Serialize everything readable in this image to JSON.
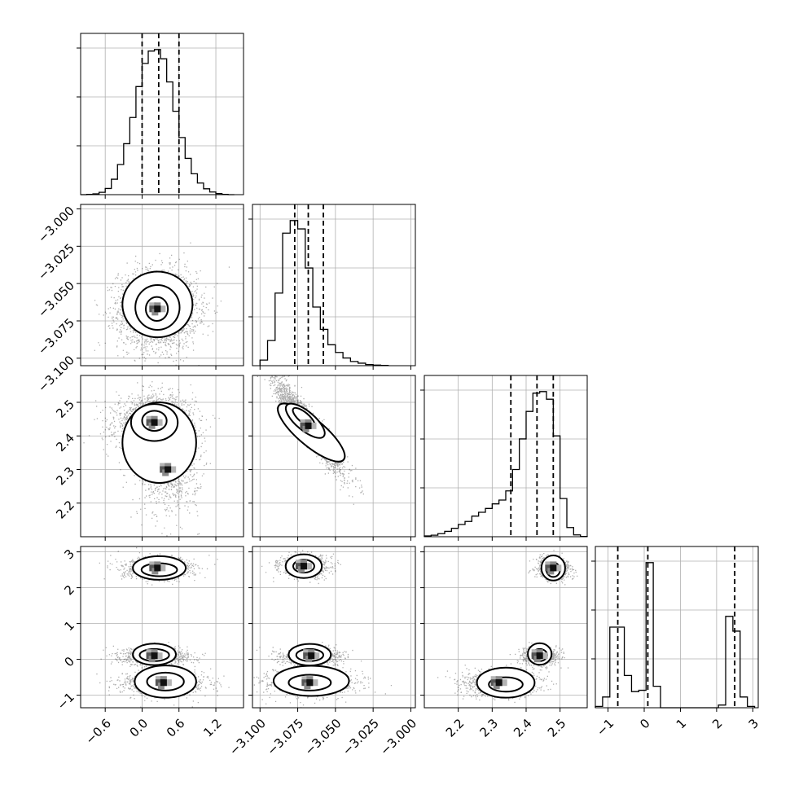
{
  "chart_data": {
    "type": "corner",
    "n_params": 4,
    "grid": true,
    "colors": {
      "line": "#000000",
      "grid": "#b0b0b0",
      "contour_fill": "#ffffff",
      "dens": [
        "#f2f2f2",
        "#d6d6d6",
        "#b4b4b4",
        "#8a8a8a",
        "#555555",
        "#111111"
      ]
    },
    "params": [
      {
        "range": [
          -1.0,
          1.65
        ],
        "ticks": [
          "−0.6",
          "0.0",
          "0.6",
          "1.2"
        ],
        "tick_values": [
          -0.6,
          0.0,
          0.6,
          1.2
        ],
        "quantiles": [
          0.0,
          0.27,
          0.6
        ],
        "hist": {
          "edges": [
            -1.0,
            -0.9,
            -0.8,
            -0.7,
            -0.6,
            -0.5,
            -0.4,
            -0.3,
            -0.2,
            -0.1,
            0.0,
            0.1,
            0.2,
            0.3,
            0.4,
            0.5,
            0.6,
            0.7,
            0.8,
            0.9,
            1.0,
            1.1,
            1.2,
            1.3,
            1.4,
            1.5
          ],
          "counts": [
            0,
            2,
            5,
            15,
            40,
            100,
            195,
            330,
            500,
            700,
            850,
            930,
            940,
            880,
            730,
            540,
            370,
            235,
            135,
            75,
            38,
            17,
            7,
            2,
            0
          ]
        }
      },
      {
        "range": [
          -3.105,
          -2.997
        ],
        "ticks": [
          "−3.100",
          "−3.075",
          "−3.050",
          "−3.025",
          "−3.000"
        ],
        "tick_values": [
          -3.1,
          -3.075,
          -3.05,
          -3.025,
          -3.0
        ],
        "quantiles": [
          -3.077,
          -3.068,
          -3.058
        ],
        "hist": {
          "edges": [
            -3.1,
            -3.095,
            -3.09,
            -3.085,
            -3.08,
            -3.075,
            -3.07,
            -3.065,
            -3.06,
            -3.055,
            -3.05,
            -3.045,
            -3.04,
            -3.035,
            -3.03,
            -3.025,
            -3.02,
            -3.015
          ],
          "counts": [
            40,
            180,
            520,
            950,
            1040,
            980,
            700,
            420,
            260,
            150,
            95,
            55,
            30,
            18,
            8,
            4,
            2
          ]
        }
      },
      {
        "range": [
          2.1,
          2.58
        ],
        "ticks": [
          "2.2",
          "2.3",
          "2.4",
          "2.5"
        ],
        "tick_values": [
          2.2,
          2.3,
          2.4,
          2.5
        ],
        "quantiles": [
          2.355,
          2.432,
          2.48
        ],
        "hist": {
          "edges": [
            2.1,
            2.12,
            2.14,
            2.16,
            2.18,
            2.2,
            2.22,
            2.24,
            2.26,
            2.28,
            2.3,
            2.32,
            2.34,
            2.36,
            2.38,
            2.4,
            2.42,
            2.44,
            2.46,
            2.48,
            2.5,
            2.52,
            2.54,
            2.56,
            2.58
          ],
          "counts": [
            5,
            10,
            20,
            35,
            55,
            80,
            100,
            135,
            160,
            185,
            215,
            240,
            300,
            440,
            640,
            820,
            940,
            950,
            900,
            660,
            250,
            60,
            12,
            2
          ]
        }
      },
      {
        "range": [
          -1.35,
          3.15
        ],
        "ticks": [
          "−1",
          "0",
          "1",
          "2",
          "3"
        ],
        "tick_values": [
          -1,
          0,
          1,
          2,
          3
        ],
        "quantiles": [
          -0.73,
          0.1,
          2.5
        ],
        "hist": {
          "edges": [
            -1.35,
            -1.15,
            -0.95,
            -0.75,
            -0.55,
            -0.35,
            -0.15,
            0.05,
            0.25,
            0.45,
            0.65,
            0.85,
            1.05,
            1.25,
            1.45,
            1.65,
            1.85,
            2.05,
            2.25,
            2.45,
            2.65,
            2.85,
            3.05
          ],
          "counts": [
            5,
            40,
            300,
            300,
            120,
            60,
            65,
            540,
            80,
            0,
            0,
            0,
            0,
            0,
            0,
            0,
            0,
            10,
            340,
            285,
            40,
            5
          ]
        }
      }
    ],
    "pairs": [
      {
        "row": 1,
        "col": 0,
        "modes": [
          {
            "w": 1.0,
            "mx": 0.25,
            "my": -3.067,
            "sx": 0.32,
            "sy": 0.013,
            "rho": 0.0
          }
        ],
        "contours": [
          {
            "w": 0.85,
            "cx": 0.25,
            "cy": -3.064,
            "rx": 0.57,
            "ry": 0.022,
            "rot": 0
          },
          {
            "w": 0.75,
            "cx": 0.25,
            "cy": -3.066,
            "rx": 0.36,
            "ry": 0.015,
            "rot": 0
          },
          {
            "w": 0.75,
            "cx": 0.24,
            "cy": -3.067,
            "rx": 0.18,
            "ry": 0.008,
            "rot": 0
          }
        ]
      },
      {
        "row": 2,
        "col": 0,
        "modes": [
          {
            "w": 0.7,
            "mx": 0.2,
            "my": 2.44,
            "sx": 0.32,
            "sy": 0.04,
            "rho": 0.0
          },
          {
            "w": 0.3,
            "mx": 0.42,
            "my": 2.3,
            "sx": 0.25,
            "sy": 0.07,
            "rho": 0.0
          }
        ],
        "contours": [
          {
            "w": 0.85,
            "cx": 0.28,
            "cy": 2.38,
            "rx": 0.6,
            "ry": 0.12,
            "rot": 0
          },
          {
            "w": 0.75,
            "cx": 0.2,
            "cy": 2.44,
            "rx": 0.38,
            "ry": 0.055,
            "rot": 0
          },
          {
            "w": 0.75,
            "cx": 0.2,
            "cy": 2.445,
            "rx": 0.2,
            "ry": 0.03,
            "rot": 0
          }
        ]
      },
      {
        "row": 2,
        "col": 1,
        "modes": [
          {
            "w": 1.0,
            "mx": -3.068,
            "my": 2.43,
            "sx": 0.011,
            "sy": 0.065,
            "rho": -0.93
          }
        ],
        "contours": [
          {
            "w": 0.85,
            "cx": -3.066,
            "cy": 2.41,
            "rx": 0.028,
            "ry": 0.04,
            "rot": 40
          },
          {
            "w": 0.75,
            "cx": -3.07,
            "cy": 2.445,
            "rx": 0.016,
            "ry": 0.028,
            "rot": 40
          },
          {
            "w": 0.75,
            "cx": -3.071,
            "cy": 2.455,
            "rx": 0.009,
            "ry": 0.015,
            "rot": 40
          }
        ]
      },
      {
        "row": 3,
        "col": 0,
        "modes": [
          {
            "w": 0.33,
            "mx": 0.25,
            "my": 2.55,
            "sx": 0.3,
            "sy": 0.15,
            "rho": 0.0
          },
          {
            "w": 0.33,
            "mx": 0.2,
            "my": 0.1,
            "sx": 0.28,
            "sy": 0.12,
            "rho": 0.0
          },
          {
            "w": 0.34,
            "mx": 0.35,
            "my": -0.65,
            "sx": 0.35,
            "sy": 0.18,
            "rho": 0.0
          }
        ],
        "contours": [
          {
            "w": 0.85,
            "cx": 0.28,
            "cy": 2.55,
            "rx": 0.43,
            "ry": 0.33,
            "rot": 0
          },
          {
            "w": 0.75,
            "cx": 0.28,
            "cy": 2.5,
            "rx": 0.29,
            "ry": 0.18,
            "rot": 0
          },
          {
            "w": 0.85,
            "cx": 0.2,
            "cy": 0.14,
            "rx": 0.35,
            "ry": 0.3,
            "rot": 0
          },
          {
            "w": 0.75,
            "cx": 0.2,
            "cy": 0.12,
            "rx": 0.24,
            "ry": 0.17,
            "rot": 0
          },
          {
            "w": 0.75,
            "cx": 0.18,
            "cy": 0.12,
            "rx": 0.1,
            "ry": 0.08,
            "rot": 0
          },
          {
            "w": 0.85,
            "cx": 0.38,
            "cy": -0.62,
            "rx": 0.5,
            "ry": 0.45,
            "rot": 0
          },
          {
            "w": 0.75,
            "cx": 0.38,
            "cy": -0.62,
            "rx": 0.3,
            "ry": 0.25,
            "rot": 0
          }
        ]
      },
      {
        "row": 3,
        "col": 1,
        "modes": [
          {
            "w": 0.33,
            "mx": -3.071,
            "my": 2.6,
            "sx": 0.008,
            "sy": 0.15,
            "rho": 0.0
          },
          {
            "w": 0.33,
            "mx": -3.066,
            "my": 0.1,
            "sx": 0.01,
            "sy": 0.12,
            "rho": 0.0
          },
          {
            "w": 0.34,
            "mx": -3.067,
            "my": -0.65,
            "sx": 0.016,
            "sy": 0.2,
            "rho": 0.0
          }
        ],
        "contours": [
          {
            "w": 0.85,
            "cx": -3.071,
            "cy": 2.6,
            "rx": 0.012,
            "ry": 0.33,
            "rot": 0
          },
          {
            "w": 0.75,
            "cx": -3.071,
            "cy": 2.6,
            "rx": 0.007,
            "ry": 0.18,
            "rot": 0
          },
          {
            "w": 0.85,
            "cx": -3.067,
            "cy": 0.13,
            "rx": 0.014,
            "ry": 0.3,
            "rot": 0
          },
          {
            "w": 0.75,
            "cx": -3.067,
            "cy": 0.12,
            "rx": 0.009,
            "ry": 0.17,
            "rot": 0
          },
          {
            "w": 0.75,
            "cx": -3.066,
            "cy": 0.12,
            "rx": 0.004,
            "ry": 0.07,
            "rot": 0
          },
          {
            "w": 0.85,
            "cx": -3.066,
            "cy": -0.6,
            "rx": 0.025,
            "ry": 0.42,
            "rot": 0
          },
          {
            "w": 0.75,
            "cx": -3.067,
            "cy": -0.65,
            "rx": 0.014,
            "ry": 0.22,
            "rot": 0
          }
        ]
      },
      {
        "row": 3,
        "col": 2,
        "modes": [
          {
            "w": 0.33,
            "mx": 2.48,
            "my": 2.55,
            "sx": 0.025,
            "sy": 0.15,
            "rho": 0.0
          },
          {
            "w": 0.33,
            "mx": 2.44,
            "my": 0.1,
            "sx": 0.025,
            "sy": 0.12,
            "rho": 0.0
          },
          {
            "w": 0.34,
            "mx": 2.32,
            "my": -0.65,
            "sx": 0.06,
            "sy": 0.18,
            "rho": 0.0
          }
        ],
        "contours": [
          {
            "w": 0.85,
            "cx": 2.48,
            "cy": 2.55,
            "rx": 0.035,
            "ry": 0.35,
            "rot": 0
          },
          {
            "w": 0.75,
            "cx": 2.48,
            "cy": 2.5,
            "rx": 0.02,
            "ry": 0.2,
            "rot": 0
          },
          {
            "w": 0.85,
            "cx": 2.44,
            "cy": 0.15,
            "rx": 0.035,
            "ry": 0.3,
            "rot": 0
          },
          {
            "w": 0.75,
            "cx": 2.44,
            "cy": 0.12,
            "rx": 0.022,
            "ry": 0.17,
            "rot": 0
          },
          {
            "w": 0.75,
            "cx": 2.435,
            "cy": 0.12,
            "rx": 0.01,
            "ry": 0.08,
            "rot": 0
          },
          {
            "w": 0.85,
            "cx": 2.34,
            "cy": -0.65,
            "rx": 0.085,
            "ry": 0.42,
            "rot": 0
          },
          {
            "w": 0.75,
            "cx": 2.34,
            "cy": -0.7,
            "rx": 0.05,
            "ry": 0.2,
            "rot": 0
          }
        ]
      }
    ]
  }
}
